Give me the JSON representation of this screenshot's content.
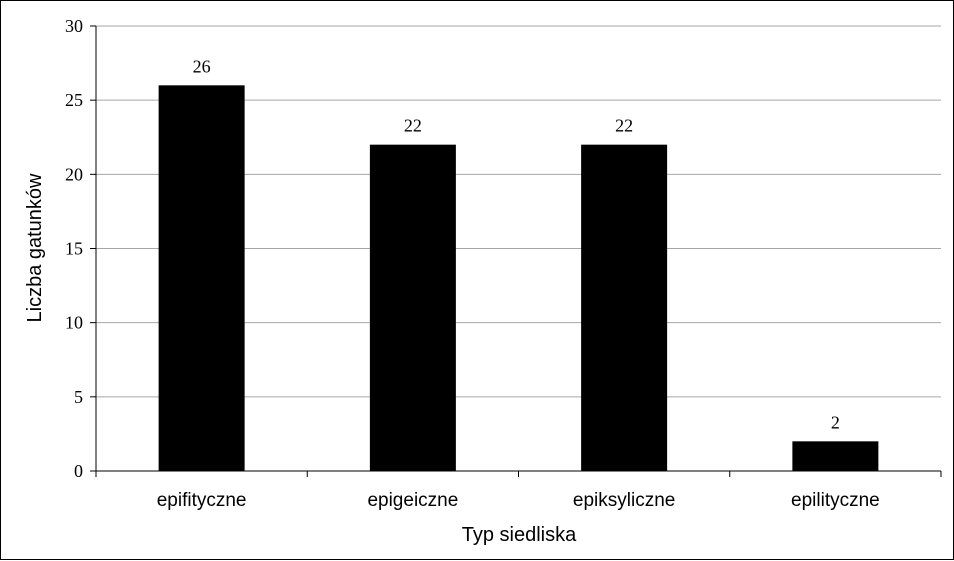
{
  "chart_data": {
    "type": "bar",
    "categories": [
      "epifityczne",
      "epigeiczne",
      "epiksyliczne",
      "epilityczne"
    ],
    "values": [
      26,
      22,
      22,
      2
    ],
    "data_labels": [
      "26",
      "22",
      "22",
      "2"
    ],
    "title": "",
    "xlabel": "Typ siedliska",
    "ylabel": "Liczba gatunków",
    "ylim": [
      0,
      30
    ],
    "yticks": [
      0,
      5,
      10,
      15,
      20,
      25,
      30
    ],
    "grid": true,
    "legend": "none",
    "bar_color": "#000000",
    "grid_color": "#a6a6a6"
  }
}
